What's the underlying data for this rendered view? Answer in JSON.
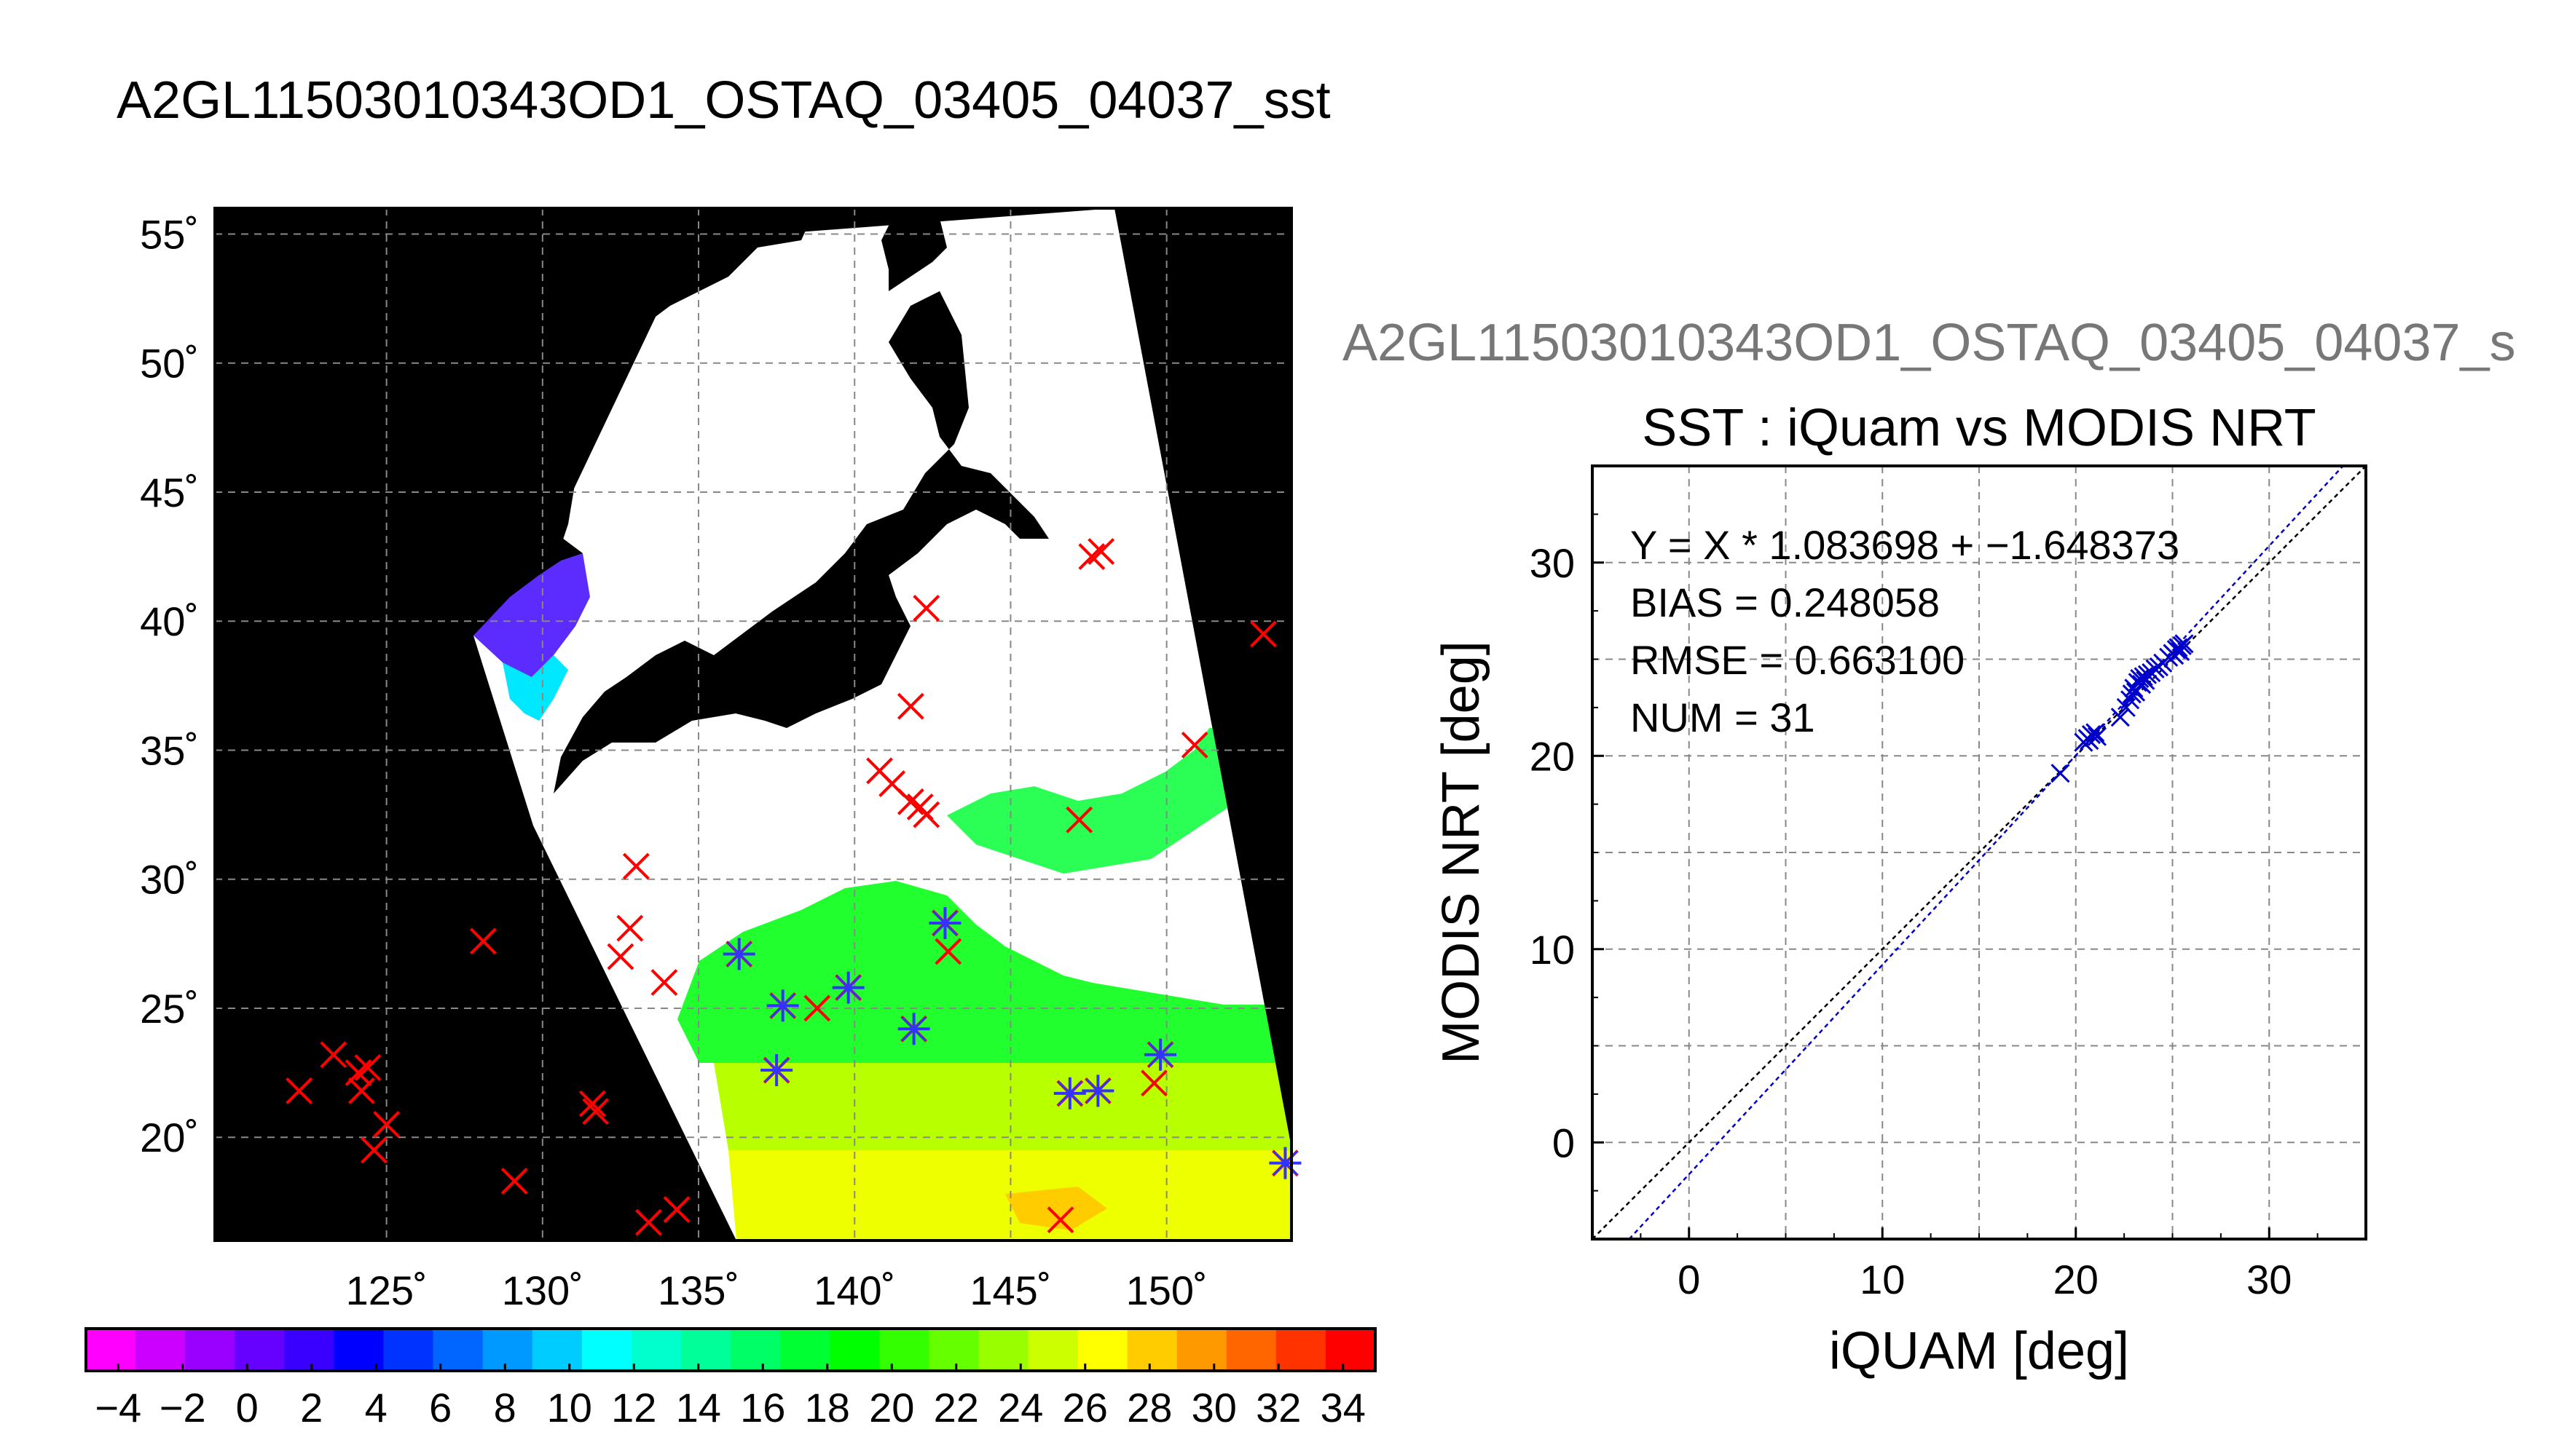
{
  "figure": {
    "main_title": "A2GL11503010343OD1_OSTAQ_03405_04037_sst"
  },
  "chart_data": [
    {
      "type": "map",
      "title": "A2GL11503010343OD1_OSTAQ_03405_04037_sst",
      "xlim": [
        119.5,
        154
      ],
      "ylim": [
        16,
        56
      ],
      "lon_ticks": [
        125,
        130,
        135,
        140,
        145,
        150
      ],
      "lon_tick_labels": [
        "125˚",
        "130˚",
        "135˚",
        "140˚",
        "145˚",
        "150˚"
      ],
      "lat_ticks": [
        20,
        25,
        30,
        35,
        40,
        45,
        50,
        55
      ],
      "lat_tick_labels": [
        "20˚",
        "25˚",
        "30˚",
        "35˚",
        "40˚",
        "45˚",
        "50˚",
        "55˚"
      ],
      "grid": true,
      "background_color": "#000000",
      "swath_color": "#ffffff",
      "colorbar": {
        "min": -5,
        "max": 35,
        "tick_values": [
          -4,
          -2,
          0,
          2,
          4,
          6,
          8,
          10,
          12,
          14,
          16,
          18,
          20,
          22,
          24,
          26,
          28,
          30,
          32,
          34
        ],
        "tick_labels": [
          "−4",
          "−2",
          "0",
          "2",
          "4",
          "6",
          "8",
          "10",
          "12",
          "14",
          "16",
          "18",
          "20",
          "22",
          "24",
          "26",
          "28",
          "30",
          "32",
          "34"
        ],
        "colors": [
          "#ff00ff",
          "#cc00ff",
          "#9a00ff",
          "#6600ff",
          "#3a00ff",
          "#0000ff",
          "#0033ff",
          "#0066ff",
          "#0099ff",
          "#00ccff",
          "#00ffff",
          "#00ffcc",
          "#00ff99",
          "#00ff66",
          "#00ff33",
          "#00ff00",
          "#33ff00",
          "#66ff00",
          "#99ff00",
          "#ccff00",
          "#ffff00",
          "#ffcc00",
          "#ff9900",
          "#ff6600",
          "#ff3300",
          "#ff0000"
        ]
      },
      "marker_colors": {
        "iquam": "#ff0000",
        "matched": "#3333ff"
      },
      "iquam_points": [
        [
          122.2,
          21.8
        ],
        [
          123.3,
          23.2
        ],
        [
          124.1,
          22.5
        ],
        [
          124.2,
          21.8
        ],
        [
          124.4,
          22.7
        ],
        [
          125.0,
          20.5
        ],
        [
          124.6,
          19.5
        ],
        [
          128.1,
          27.6
        ],
        [
          129.1,
          18.3
        ],
        [
          131.6,
          21.3
        ],
        [
          131.7,
          21.0
        ],
        [
          132.5,
          27.0
        ],
        [
          132.8,
          28.1
        ],
        [
          133.0,
          30.5
        ],
        [
          133.4,
          16.7
        ],
        [
          133.9,
          26.0
        ],
        [
          134.3,
          17.2
        ],
        [
          136.3,
          27.1
        ],
        [
          137.5,
          22.6
        ],
        [
          137.7,
          25.1
        ],
        [
          138.8,
          25.0
        ],
        [
          139.8,
          25.8
        ],
        [
          140.8,
          34.2
        ],
        [
          141.2,
          33.7
        ],
        [
          141.8,
          33.0
        ],
        [
          142.1,
          32.8
        ],
        [
          142.3,
          32.5
        ],
        [
          141.9,
          24.2
        ],
        [
          141.8,
          36.7
        ],
        [
          142.3,
          40.5
        ],
        [
          142.9,
          28.3
        ],
        [
          143.0,
          27.2
        ],
        [
          146.6,
          16.8
        ],
        [
          146.9,
          21.7
        ],
        [
          147.2,
          32.3
        ],
        [
          147.6,
          42.5
        ],
        [
          147.9,
          42.7
        ],
        [
          147.8,
          21.8
        ],
        [
          149.6,
          22.1
        ],
        [
          149.8,
          23.2
        ],
        [
          150.9,
          35.2
        ],
        [
          153.1,
          39.5
        ],
        [
          153.8,
          19.0
        ]
      ],
      "matched_points": [
        [
          136.3,
          27.1
        ],
        [
          137.5,
          22.6
        ],
        [
          137.7,
          25.1
        ],
        [
          139.8,
          25.8
        ],
        [
          141.9,
          24.2
        ],
        [
          142.9,
          28.3
        ],
        [
          146.9,
          21.7
        ],
        [
          147.8,
          21.8
        ],
        [
          149.8,
          23.2
        ],
        [
          153.8,
          19.0
        ]
      ]
    },
    {
      "type": "scatter",
      "title": "SST : iQuam vs MODIS NRT",
      "file_label": "A2GL11503010343OD1_OSTAQ_03405_04037_s",
      "xlabel": "iQUAM [deg]",
      "ylabel": "MODIS NRT [deg]",
      "xlim": [
        -5,
        35
      ],
      "ylim": [
        -5,
        35
      ],
      "xticks": [
        0,
        10,
        20,
        30
      ],
      "yticks": [
        0,
        10,
        20,
        30
      ],
      "grid": true,
      "annotations": [
        "Y = X * 1.083698 + −1.648373",
        "BIAS = 0.248058",
        "RMSE = 0.663100",
        "NUM = 31"
      ],
      "fit": {
        "slope": 1.083698,
        "intercept": -1.648373,
        "color": "#0000cc"
      },
      "identity_line": {
        "color": "#000000"
      },
      "marker_color": "#0000cc",
      "points": [
        [
          19.2,
          19.1
        ],
        [
          20.4,
          20.7
        ],
        [
          20.6,
          20.9
        ],
        [
          20.7,
          20.8
        ],
        [
          20.8,
          21.1
        ],
        [
          21.0,
          21.2
        ],
        [
          21.1,
          21.0
        ],
        [
          22.3,
          22.0
        ],
        [
          22.6,
          22.5
        ],
        [
          22.9,
          23.2
        ],
        [
          23.0,
          23.5
        ],
        [
          23.2,
          23.8
        ],
        [
          23.3,
          24.0
        ],
        [
          23.4,
          23.7
        ],
        [
          23.5,
          24.1
        ],
        [
          23.6,
          23.9
        ],
        [
          23.7,
          24.2
        ],
        [
          23.9,
          24.3
        ],
        [
          24.1,
          24.5
        ],
        [
          24.5,
          24.8
        ],
        [
          24.8,
          25.1
        ],
        [
          25.0,
          25.3
        ],
        [
          25.2,
          25.5
        ],
        [
          25.3,
          25.6
        ],
        [
          25.4,
          25.4
        ],
        [
          25.5,
          25.7
        ],
        [
          25.6,
          25.8
        ],
        [
          24.3,
          24.6
        ],
        [
          23.1,
          23.3
        ],
        [
          22.8,
          22.9
        ],
        [
          25.1,
          25.2
        ]
      ]
    }
  ]
}
